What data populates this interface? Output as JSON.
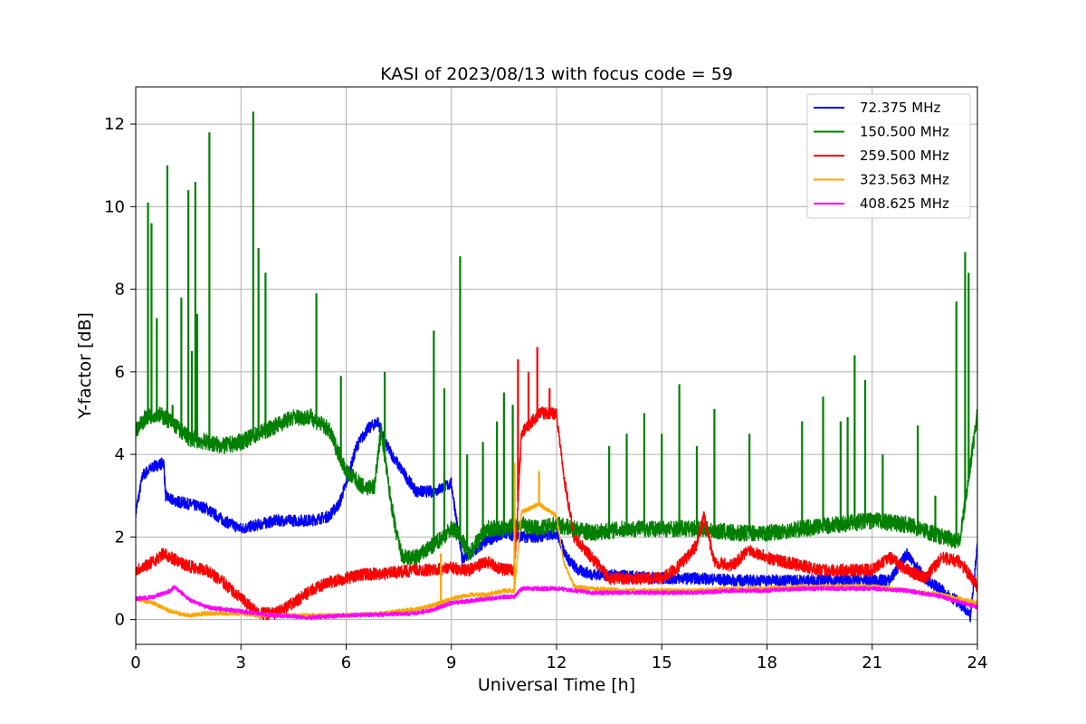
{
  "chart_data": {
    "type": "line",
    "title": "KASI of 2023/08/13 with focus code = 59",
    "xlabel": "Universal Time [h]",
    "ylabel": "Y-factor [dB]",
    "xlim": [
      0,
      24
    ],
    "ylim": [
      -0.6,
      12.9
    ],
    "xticks": [
      0,
      3,
      6,
      9,
      12,
      15,
      18,
      21,
      24
    ],
    "yticks": [
      0,
      2,
      4,
      6,
      8,
      10,
      12
    ],
    "grid": true,
    "legend_position": "top-right",
    "series": [
      {
        "name": " 72.375 MHz",
        "color": "#0000ff",
        "x": [
          0,
          0.2,
          0.5,
          0.8,
          0.85,
          1,
          1.5,
          2,
          2.5,
          3,
          3.5,
          4,
          4.5,
          5,
          5.5,
          5.8,
          6,
          6.3,
          6.6,
          6.9,
          7.1,
          7.3,
          7.6,
          8,
          8.5,
          9,
          9.3,
          9.6,
          10,
          10.5,
          11,
          11.5,
          12,
          12.3,
          12.6,
          13,
          14,
          15,
          16,
          17,
          18,
          19,
          20,
          21,
          21.5,
          22,
          22.5,
          23,
          23.5,
          23.8,
          24
        ],
        "y": [
          2.6,
          3.5,
          3.7,
          3.8,
          3.0,
          2.9,
          2.8,
          2.7,
          2.4,
          2.2,
          2.3,
          2.4,
          2.4,
          2.4,
          2.5,
          2.8,
          3.3,
          4.2,
          4.6,
          4.8,
          4.3,
          4.0,
          3.6,
          3.1,
          3.1,
          3.3,
          1.5,
          1.6,
          1.9,
          2.1,
          2.0,
          2.0,
          2.1,
          1.5,
          1.2,
          1.1,
          1.05,
          1.0,
          1.0,
          0.95,
          0.95,
          0.95,
          0.95,
          0.95,
          0.95,
          1.6,
          1.0,
          0.7,
          0.4,
          0.05,
          1.8
        ],
        "noise": 0.14
      },
      {
        "name": "150.500 MHz",
        "color": "#008000",
        "x": [
          0,
          0.3,
          0.6,
          1,
          1.5,
          2,
          2.5,
          3,
          3.5,
          4,
          4.5,
          5,
          5.5,
          5.8,
          6,
          6.5,
          6.8,
          7,
          7.2,
          7.4,
          7.6,
          8,
          8.5,
          9,
          9.2,
          9.5,
          10,
          10.5,
          11,
          11.5,
          12,
          12.5,
          13,
          14,
          15,
          16,
          17,
          18,
          19,
          20,
          21,
          22,
          23,
          23.5,
          24
        ],
        "y": [
          4.6,
          4.9,
          5.0,
          4.8,
          4.4,
          4.3,
          4.2,
          4.3,
          4.5,
          4.7,
          4.9,
          4.9,
          4.6,
          4.0,
          3.6,
          3.2,
          3.2,
          4.6,
          3.3,
          2.2,
          1.5,
          1.5,
          1.8,
          2.2,
          2.1,
          1.6,
          2.2,
          2.2,
          2.3,
          2.2,
          2.3,
          2.2,
          2.1,
          2.2,
          2.2,
          2.2,
          2.1,
          2.1,
          2.2,
          2.3,
          2.4,
          2.3,
          2.0,
          1.9,
          5.0
        ],
        "noise": 0.2,
        "spikes": [
          [
            0.35,
            10.1
          ],
          [
            0.45,
            9.6
          ],
          [
            0.6,
            7.3
          ],
          [
            0.9,
            11.0
          ],
          [
            1.05,
            5.2
          ],
          [
            1.3,
            7.8
          ],
          [
            1.5,
            10.4
          ],
          [
            1.6,
            6.5
          ],
          [
            1.7,
            10.6
          ],
          [
            1.75,
            7.4
          ],
          [
            2.1,
            11.8
          ],
          [
            3.35,
            12.3
          ],
          [
            3.5,
            9.0
          ],
          [
            3.7,
            8.4
          ],
          [
            5.15,
            7.9
          ],
          [
            5.85,
            5.9
          ],
          [
            7.1,
            6.0
          ],
          [
            8.5,
            7.0
          ],
          [
            8.8,
            5.6
          ],
          [
            9.25,
            8.8
          ],
          [
            9.45,
            4.0
          ],
          [
            9.9,
            4.3
          ],
          [
            10.3,
            4.8
          ],
          [
            10.5,
            5.5
          ],
          [
            10.75,
            5.2
          ],
          [
            13.5,
            4.2
          ],
          [
            14.0,
            4.5
          ],
          [
            14.5,
            5.0
          ],
          [
            15.0,
            4.5
          ],
          [
            15.5,
            5.7
          ],
          [
            16.0,
            4.2
          ],
          [
            16.5,
            5.1
          ],
          [
            17.5,
            4.5
          ],
          [
            19.0,
            4.8
          ],
          [
            19.6,
            5.4
          ],
          [
            20.1,
            4.8
          ],
          [
            20.3,
            4.9
          ],
          [
            20.5,
            6.4
          ],
          [
            20.8,
            5.8
          ],
          [
            21.3,
            4.0
          ],
          [
            22.3,
            4.7
          ],
          [
            22.8,
            3.0
          ],
          [
            23.4,
            7.7
          ],
          [
            23.65,
            8.9
          ],
          [
            23.75,
            8.4
          ],
          [
            24.0,
            5.1
          ]
        ]
      },
      {
        "name": "259.500 MHz",
        "color": "#ff0000",
        "x": [
          0,
          0.5,
          0.8,
          1.0,
          1.5,
          2,
          2.5,
          3,
          3.5,
          4,
          4.5,
          5,
          5.5,
          6,
          6.5,
          7,
          7.5,
          8,
          8.5,
          9,
          9.5,
          10,
          10.5,
          10.8,
          11,
          11.5,
          12,
          12.2,
          12.5,
          13,
          13.5,
          14,
          14.5,
          15,
          15.5,
          16,
          16.2,
          16.5,
          17,
          17.5,
          18,
          18.5,
          19,
          19.5,
          20,
          20.5,
          21,
          21.5,
          22,
          22.5,
          23,
          23.5,
          24
        ],
        "y": [
          1.2,
          1.4,
          1.6,
          1.5,
          1.3,
          1.2,
          0.9,
          0.5,
          0.15,
          0.15,
          0.4,
          0.7,
          0.9,
          1.0,
          1.1,
          1.1,
          1.15,
          1.2,
          1.2,
          1.25,
          1.2,
          1.4,
          1.2,
          1.2,
          4.5,
          5.0,
          5.0,
          3.5,
          2.0,
          1.5,
          1.0,
          1.0,
          1.0,
          1.0,
          1.3,
          1.8,
          2.5,
          1.4,
          1.3,
          1.7,
          1.5,
          1.4,
          1.3,
          1.2,
          1.2,
          1.2,
          1.2,
          1.5,
          1.2,
          1.0,
          1.5,
          1.4,
          0.8
        ],
        "noise": 0.15,
        "spikes": [
          [
            10.9,
            6.3
          ],
          [
            11.2,
            6.0
          ],
          [
            11.45,
            6.6
          ],
          [
            11.8,
            5.6
          ]
        ]
      },
      {
        "name": "323.563 MHz",
        "color": "#ffa500",
        "x": [
          0,
          0.5,
          1,
          1.5,
          2,
          2.5,
          3,
          3.5,
          4,
          5,
          6,
          7,
          8,
          8.5,
          9,
          9.5,
          10,
          10.5,
          10.8,
          11,
          11.5,
          12,
          12.2,
          12.5,
          13,
          14,
          15,
          16,
          17,
          18,
          19,
          20,
          21,
          22,
          23,
          24
        ],
        "y": [
          0.5,
          0.4,
          0.2,
          0.1,
          0.15,
          0.15,
          0.15,
          0.1,
          0.1,
          0.1,
          0.1,
          0.15,
          0.25,
          0.35,
          0.5,
          0.6,
          0.6,
          0.7,
          0.7,
          2.6,
          2.8,
          2.5,
          1.4,
          0.8,
          0.75,
          0.7,
          0.7,
          0.7,
          0.75,
          0.75,
          0.8,
          0.8,
          0.8,
          0.7,
          0.6,
          0.4
        ],
        "noise": 0.05,
        "spikes": [
          [
            8.7,
            1.6
          ],
          [
            10.8,
            3.8
          ],
          [
            11.5,
            3.6
          ]
        ]
      },
      {
        "name": "408.625 MHz",
        "color": "#ff00ff",
        "x": [
          0,
          0.5,
          1,
          1.1,
          1.5,
          2,
          2.5,
          3,
          3.5,
          4,
          5,
          6,
          7,
          8,
          8.5,
          9,
          9.5,
          10,
          10.5,
          10.8,
          11,
          11.5,
          12,
          12.5,
          13,
          14,
          15,
          16,
          17,
          18,
          19,
          20,
          21,
          22,
          23,
          24
        ],
        "y": [
          0.5,
          0.55,
          0.7,
          0.8,
          0.5,
          0.3,
          0.25,
          0.2,
          0.15,
          0.1,
          0.05,
          0.1,
          0.12,
          0.15,
          0.25,
          0.4,
          0.45,
          0.5,
          0.55,
          0.55,
          0.75,
          0.75,
          0.75,
          0.7,
          0.65,
          0.65,
          0.65,
          0.65,
          0.7,
          0.7,
          0.75,
          0.75,
          0.75,
          0.7,
          0.55,
          0.3
        ],
        "noise": 0.05
      }
    ]
  }
}
